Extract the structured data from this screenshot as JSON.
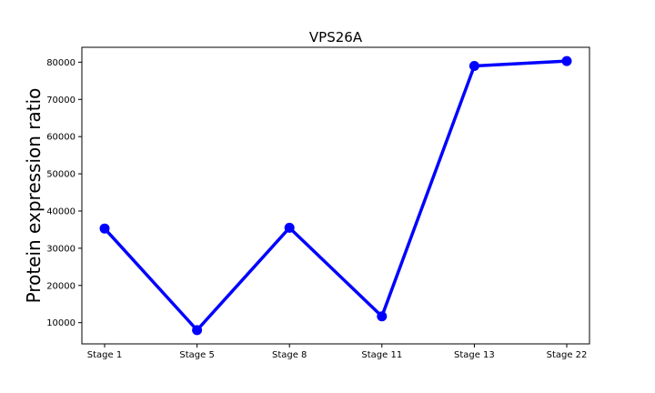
{
  "chart_data": {
    "type": "line",
    "title": "VPS26A",
    "xlabel": "",
    "ylabel": "Protein expression ratio",
    "categories": [
      "Stage 1",
      "Stage 5",
      "Stage 8",
      "Stage 11",
      "Stage 13",
      "Stage 22"
    ],
    "series": [
      {
        "values": [
          35300,
          8000,
          35500,
          11700,
          79000,
          80300
        ]
      }
    ],
    "ylim": [
      4300,
      84000
    ],
    "yticks": [
      10000,
      20000,
      30000,
      40000,
      50000,
      60000,
      70000,
      80000
    ],
    "ytick_labels": [
      "10000",
      "20000",
      "30000",
      "40000",
      "50000",
      "60000",
      "70000",
      "80000"
    ],
    "line_color": "#0000ff",
    "grid": false,
    "legend": "none"
  }
}
